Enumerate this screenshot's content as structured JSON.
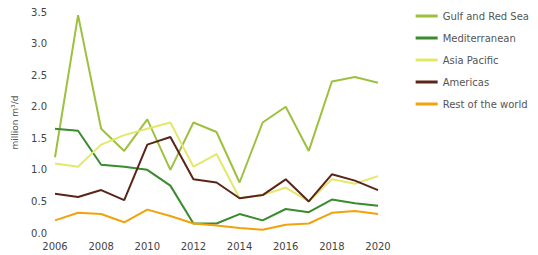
{
  "chart_data": {
    "type": "line",
    "ylabel": "million m³/d",
    "x": [
      2006,
      2007,
      2008,
      2009,
      2010,
      2011,
      2012,
      2013,
      2014,
      2015,
      2016,
      2017,
      2018,
      2019,
      2020
    ],
    "xlim": [
      2006,
      2020
    ],
    "xticks": [
      2006,
      2008,
      2010,
      2012,
      2014,
      2016,
      2018,
      2020
    ],
    "ylim": [
      0,
      3.5
    ],
    "yticks": [
      {
        "value": 0,
        "label": "0.0"
      },
      {
        "value": 0.5,
        "label": "0.5"
      },
      {
        "value": 1,
        "label": "1.0"
      },
      {
        "value": 1.5,
        "label": "1.5"
      },
      {
        "value": 2,
        "label": "2.0"
      },
      {
        "value": 2.5,
        "label": "2.5"
      },
      {
        "value": 3,
        "label": "3.0"
      },
      {
        "value": 3.5,
        "label": "3.5"
      }
    ],
    "grid": false,
    "legend": "right",
    "series": [
      {
        "name": "Gulf and Red Sea",
        "color": "#9dc13f",
        "values": [
          1.2,
          3.45,
          1.65,
          1.3,
          1.8,
          1.0,
          1.75,
          1.6,
          0.8,
          1.75,
          2.0,
          1.3,
          2.4,
          2.47,
          2.38
        ]
      },
      {
        "name": "Mediterranean",
        "color": "#3a8a2e",
        "values": [
          1.65,
          1.62,
          1.08,
          1.05,
          1.0,
          0.75,
          0.15,
          0.15,
          0.3,
          0.2,
          0.38,
          0.33,
          0.53,
          0.47,
          0.43
        ]
      },
      {
        "name": "Asia Pacific",
        "color": "#e4e86a",
        "values": [
          1.1,
          1.05,
          1.4,
          1.55,
          1.65,
          1.75,
          1.05,
          1.25,
          0.55,
          0.6,
          0.72,
          0.5,
          0.85,
          0.78,
          0.9
        ]
      },
      {
        "name": "Americas",
        "color": "#5a2419",
        "values": [
          0.62,
          0.57,
          0.68,
          0.52,
          1.4,
          1.52,
          0.85,
          0.8,
          0.55,
          0.6,
          0.85,
          0.5,
          0.93,
          0.83,
          0.68
        ]
      },
      {
        "name": "Rest of the world",
        "color": "#f0a30a",
        "values": [
          0.2,
          0.32,
          0.3,
          0.17,
          0.37,
          0.27,
          0.15,
          0.12,
          0.08,
          0.05,
          0.13,
          0.15,
          0.32,
          0.35,
          0.3
        ]
      }
    ]
  }
}
